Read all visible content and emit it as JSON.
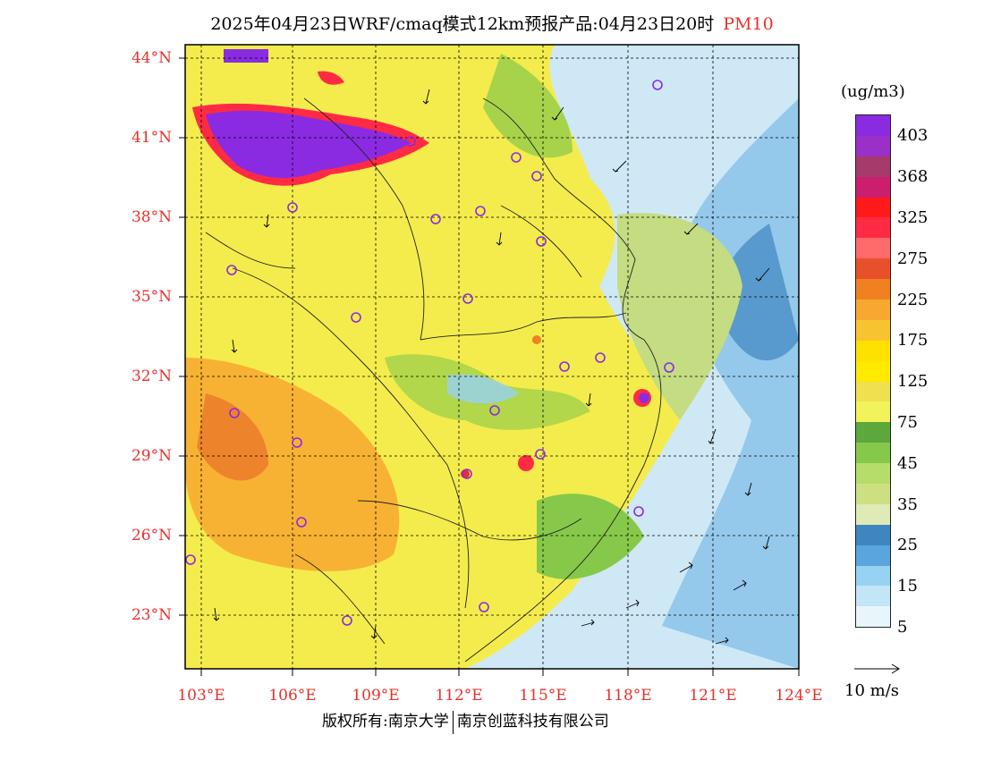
{
  "title": {
    "main": "2025年04月23日WRF/cmaq模式12km预报产品:04月23日20时",
    "pollutant": "PM10"
  },
  "map": {
    "lat_labels": [
      "44°N",
      "41°N",
      "38°N",
      "35°N",
      "32°N",
      "29°N",
      "26°N",
      "23°N"
    ],
    "lon_labels": [
      "103°E",
      "106°E",
      "109°E",
      "112°E",
      "115°E",
      "118°E",
      "121°E",
      "124°E"
    ]
  },
  "colorbar": {
    "unit": "(ug/m3)",
    "labels": [
      "403",
      "368",
      "325",
      "275",
      "225",
      "175",
      "125",
      "75",
      "45",
      "35",
      "25",
      "15",
      "5"
    ],
    "colors": [
      "#8a2be2",
      "#9b30c8",
      "#a63a6a",
      "#cc1e6e",
      "#ff1a1a",
      "#ff2a44",
      "#ff6a6a",
      "#e8502a",
      "#f08020",
      "#f7a830",
      "#f7c430",
      "#ffe100",
      "#ffea00",
      "#f0e050",
      "#f2f25a",
      "#5ca83a",
      "#86c94a",
      "#b6dc6a",
      "#cce082",
      "#e0eab6",
      "#3e86c0",
      "#5aa6dc",
      "#96d2f2",
      "#c2e6f8",
      "#e8f6fc"
    ]
  },
  "vector_key": {
    "label": "10 m/s"
  },
  "footer": {
    "left": "版权所有:南京大学",
    "right": "南京创蓝科技有限公司"
  }
}
